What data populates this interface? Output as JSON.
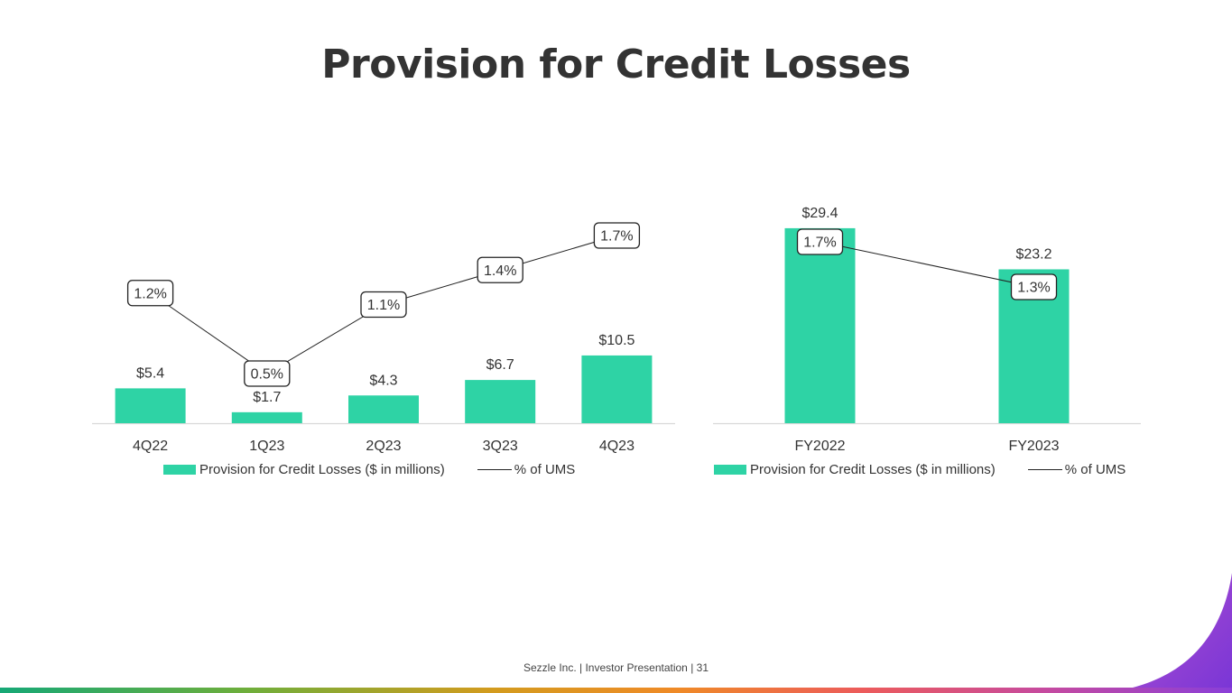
{
  "page": {
    "title": "Provision for Credit Losses",
    "footer": "Sezzle Inc. | Investor Presentation | 31"
  },
  "colors": {
    "bar": "#2ed3a5",
    "line": "#222222",
    "axis": "#d9d9d9",
    "text": "#333333"
  },
  "chart_data": [
    {
      "type": "bar",
      "categories": [
        "4Q22",
        "1Q23",
        "2Q23",
        "3Q23",
        "4Q23"
      ],
      "series": [
        {
          "name": "Provision for Credit Losses ($ in millions)",
          "type": "bar",
          "values": [
            5.4,
            1.7,
            4.3,
            6.7,
            10.5
          ],
          "labels": [
            "$5.4",
            "$1.7",
            "$4.3",
            "$6.7",
            "$10.5"
          ]
        },
        {
          "name": "% of UMS",
          "type": "line",
          "values": [
            1.2,
            0.5,
            1.1,
            1.4,
            1.7
          ],
          "labels": [
            "1.2%",
            "0.5%",
            "1.1%",
            "1.4%",
            "1.7%"
          ]
        }
      ],
      "legend": {
        "bar": "Provision for Credit Losses ($ in millions)",
        "line": "% of UMS"
      },
      "legend_position": "bottom"
    },
    {
      "type": "bar",
      "categories": [
        "FY2022",
        "FY2023"
      ],
      "series": [
        {
          "name": "Provision for Credit Losses ($ in millions)",
          "type": "bar",
          "values": [
            29.4,
            23.2
          ],
          "labels": [
            "$29.4",
            "$23.2"
          ]
        },
        {
          "name": "% of UMS",
          "type": "line",
          "values": [
            1.7,
            1.3
          ],
          "labels": [
            "1.7%",
            "1.3%"
          ]
        }
      ],
      "legend": {
        "bar": "Provision for Credit Losses ($ in millions)",
        "line": "% of UMS"
      },
      "legend_position": "bottom"
    }
  ]
}
